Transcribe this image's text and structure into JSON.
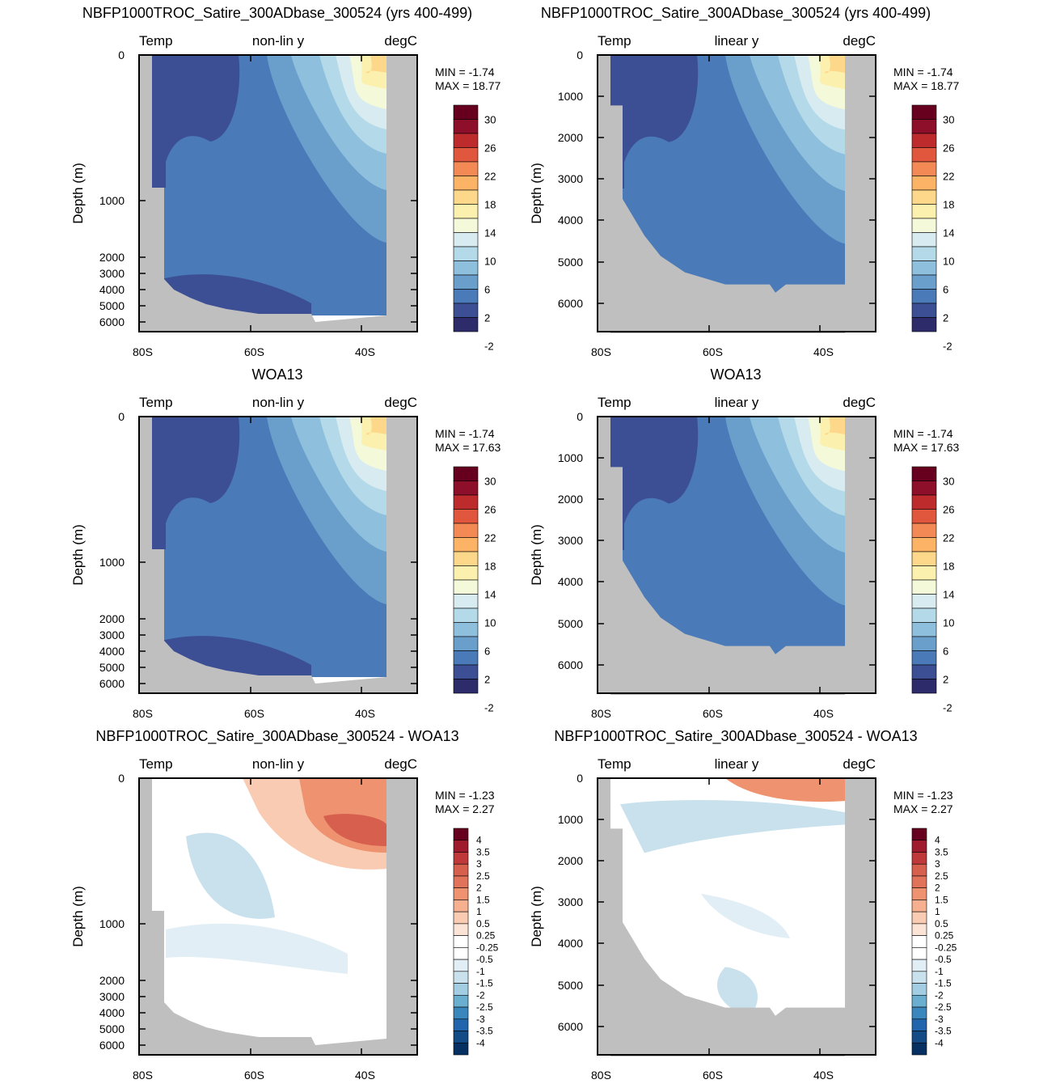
{
  "colors": {
    "land": "#bfbfbf",
    "frame": "#000000",
    "temp_palette": [
      "#2e2b6b",
      "#3c4f95",
      "#4a7ab7",
      "#6a9fcc",
      "#8ebfdc",
      "#b4d9e8",
      "#d7ebf0",
      "#f4f9d9",
      "#fcf0ae",
      "#fdd88a",
      "#fdb366",
      "#f38a55",
      "#e0573e",
      "#bd2b2d",
      "#8e0f2a",
      "#67001f"
    ],
    "diff_palette": [
      "#053061",
      "#134b87",
      "#2166ac",
      "#3a87bd",
      "#6aaed0",
      "#a3cde3",
      "#c8e1ec",
      "#e1eef5",
      "#ffffff",
      "#ffffff",
      "#fbe3d6",
      "#f9cbb2",
      "#f6b08f",
      "#ee9270",
      "#e0735a",
      "#d6604d",
      "#c0393a",
      "#a01a2d",
      "#67001f"
    ]
  },
  "panels": [
    {
      "title": "NBFP1000TROC_Satire_300ADbase_300524 (yrs 400-499)",
      "left_label": "Temp",
      "center_label": "non-lin y",
      "right_label": "degC",
      "ylabel": "Depth (m)",
      "min_text": "MIN =  -1.74",
      "max_text": "MAX =  18.77",
      "colorbar": "temp"
    },
    {
      "title": "NBFP1000TROC_Satire_300ADbase_300524 (yrs 400-499)",
      "left_label": "Temp",
      "center_label": "linear y",
      "right_label": "degC",
      "ylabel": "Depth (m)",
      "min_text": "MIN =  -1.74",
      "max_text": "MAX =  18.77",
      "colorbar": "temp"
    },
    {
      "title": "WOA13",
      "left_label": "Temp",
      "center_label": "non-lin y",
      "right_label": "degC",
      "ylabel": "Depth (m)",
      "min_text": "MIN =  -1.74",
      "max_text": "MAX =  17.63",
      "colorbar": "temp"
    },
    {
      "title": "WOA13",
      "left_label": "Temp",
      "center_label": "linear y",
      "right_label": "degC",
      "ylabel": "Depth (m)",
      "min_text": "MIN =  -1.74",
      "max_text": "MAX =  17.63",
      "colorbar": "temp"
    },
    {
      "title": "NBFP1000TROC_Satire_300ADbase_300524 - WOA13",
      "left_label": "Temp",
      "center_label": "non-lin y",
      "right_label": "degC",
      "ylabel": "Depth (m)",
      "min_text": "MIN =  -1.23",
      "max_text": "MAX =   2.27",
      "colorbar": "diff"
    },
    {
      "title": "NBFP1000TROC_Satire_300ADbase_300524 - WOA13",
      "left_label": "Temp",
      "center_label": "linear y",
      "right_label": "degC",
      "ylabel": "Depth (m)",
      "min_text": "MIN =  -1.23",
      "max_text": "MAX =   2.27",
      "colorbar": "diff"
    }
  ],
  "axes": {
    "x_ticks": [
      "80S",
      "60S",
      "40S"
    ],
    "nonlin_y_ticks": [
      "0",
      "1000",
      "2000",
      "3000",
      "4000",
      "5000",
      "6000"
    ],
    "linear_y_ticks": [
      "0",
      "1000",
      "2000",
      "3000",
      "4000",
      "5000",
      "6000"
    ]
  },
  "colorbars": {
    "temp_labels": [
      "30",
      "26",
      "22",
      "18",
      "14",
      "10",
      "6",
      "2",
      "-2"
    ],
    "diff_labels": [
      "4",
      "3.5",
      "3",
      "2.5",
      "2",
      "1.5",
      "1",
      "0.5",
      "0.25",
      "-0.25",
      "-0.5",
      "-1",
      "-1.5",
      "-2",
      "-2.5",
      "-3",
      "-3.5",
      "-4"
    ]
  },
  "chart_data": [
    {
      "type": "heatmap",
      "title": "NBFP1000TROC_Satire_300ADbase_300524 (yrs 400-499)",
      "ylabel": "Depth (m)",
      "x_range": [
        "80S",
        "30S"
      ],
      "y_range": [
        0,
        6500
      ],
      "y_scale": "non-linear",
      "contour_levels": [
        -2,
        0,
        2,
        4,
        6,
        8,
        10,
        12,
        14,
        16,
        18,
        20,
        22,
        24,
        26,
        28,
        30
      ],
      "min": -1.74,
      "max": 18.77
    },
    {
      "type": "heatmap",
      "title": "NBFP1000TROC_Satire_300ADbase_300524 (yrs 400-499)",
      "ylabel": "Depth (m)",
      "x_range": [
        "80S",
        "30S"
      ],
      "y_range": [
        0,
        6800
      ],
      "y_scale": "linear",
      "contour_levels": [
        -2,
        0,
        2,
        4,
        6,
        8,
        10,
        12,
        14,
        16,
        18,
        20,
        22,
        24,
        26,
        28,
        30
      ],
      "min": -1.74,
      "max": 18.77
    },
    {
      "type": "heatmap",
      "title": "WOA13",
      "ylabel": "Depth (m)",
      "x_range": [
        "80S",
        "30S"
      ],
      "y_range": [
        0,
        6500
      ],
      "y_scale": "non-linear",
      "contour_levels": [
        -2,
        0,
        2,
        4,
        6,
        8,
        10,
        12,
        14,
        16,
        18,
        20,
        22,
        24,
        26,
        28,
        30
      ],
      "min": -1.74,
      "max": 17.63
    },
    {
      "type": "heatmap",
      "title": "WOA13",
      "ylabel": "Depth (m)",
      "x_range": [
        "80S",
        "30S"
      ],
      "y_range": [
        0,
        6800
      ],
      "y_scale": "linear",
      "contour_levels": [
        -2,
        0,
        2,
        4,
        6,
        8,
        10,
        12,
        14,
        16,
        18,
        20,
        22,
        24,
        26,
        28,
        30
      ],
      "min": -1.74,
      "max": 17.63
    },
    {
      "type": "heatmap",
      "title": "NBFP1000TROC_Satire_300ADbase_300524 - WOA13",
      "ylabel": "Depth (m)",
      "x_range": [
        "80S",
        "30S"
      ],
      "y_range": [
        0,
        6500
      ],
      "y_scale": "non-linear",
      "contour_levels": [
        -4,
        -3.5,
        -3,
        -2.5,
        -2,
        -1.5,
        -1,
        -0.5,
        -0.25,
        0.25,
        0.5,
        1,
        1.5,
        2,
        2.5,
        3,
        3.5,
        4
      ],
      "min": -1.23,
      "max": 2.27
    },
    {
      "type": "heatmap",
      "title": "NBFP1000TROC_Satire_300ADbase_300524 - WOA13",
      "ylabel": "Depth (m)",
      "x_range": [
        "80S",
        "30S"
      ],
      "y_range": [
        0,
        6800
      ],
      "y_scale": "linear",
      "contour_levels": [
        -4,
        -3.5,
        -3,
        -2.5,
        -2,
        -1.5,
        -1,
        -0.5,
        -0.25,
        0.25,
        0.5,
        1,
        1.5,
        2,
        2.5,
        3,
        3.5,
        4
      ],
      "min": -1.23,
      "max": 2.27
    }
  ]
}
